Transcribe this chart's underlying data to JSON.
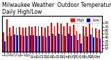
{
  "title": "Milwaukee Weather  Outdoor Temperature",
  "subtitle": "Daily High/Low",
  "highs": [
    54,
    90,
    68,
    72,
    68,
    70,
    68,
    68,
    72,
    70,
    72,
    72,
    70,
    68,
    72,
    80,
    72,
    80,
    78,
    72,
    80,
    72,
    75,
    58,
    50,
    72,
    70,
    78,
    68,
    65,
    62
  ],
  "lows": [
    30,
    45,
    45,
    48,
    46,
    46,
    44,
    44,
    46,
    46,
    44,
    44,
    44,
    40,
    44,
    50,
    44,
    50,
    48,
    44,
    50,
    44,
    46,
    32,
    24,
    44,
    42,
    48,
    40,
    38,
    36
  ],
  "high_color": "#ff0000",
  "low_color": "#0000cc",
  "bg_color": "#ffffff",
  "ylabel_right": [
    "80",
    "70",
    "60",
    "50",
    "40",
    "30",
    "20",
    "10"
  ],
  "ylim": [
    0,
    100
  ],
  "dotted_lines": [
    22,
    23
  ],
  "legend_high": "High",
  "legend_low": "Low",
  "title_fontsize": 5.5,
  "tick_fontsize": 3.5
}
